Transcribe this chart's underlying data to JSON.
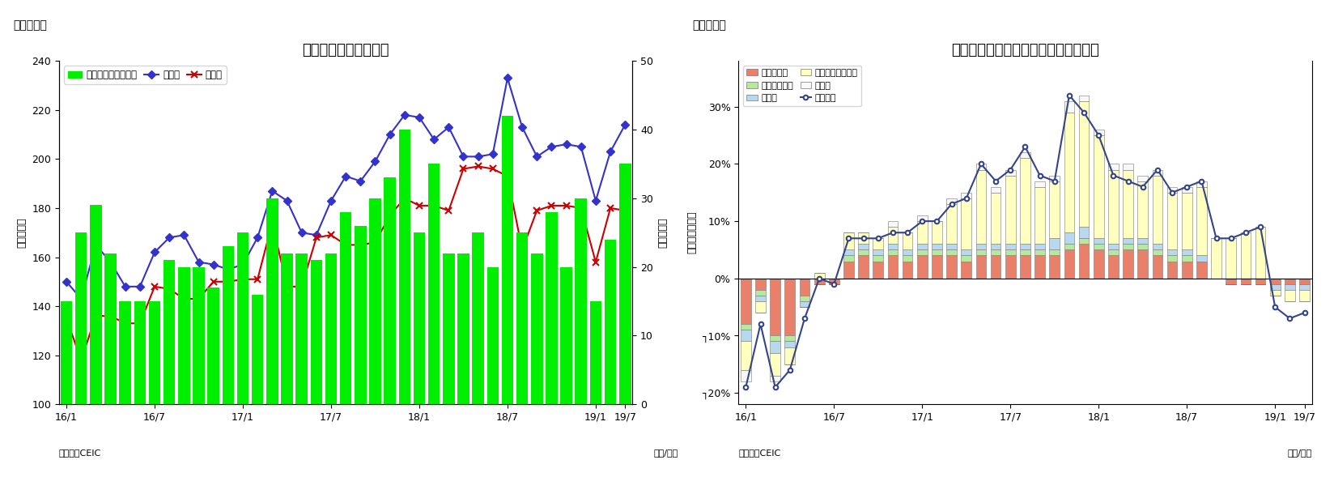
{
  "chart1": {
    "title": "マレーシア　貿易収支",
    "subtitle": "（図表７）",
    "ylabel_left": "（億ドル）",
    "ylabel_right": "（億ドル）",
    "xlabel": "（年/月）",
    "source": "（資料）CEIC",
    "ylim_left": [
      100,
      240
    ],
    "ylim_right": [
      0,
      50
    ],
    "yticks_left": [
      100,
      120,
      140,
      160,
      180,
      200,
      220,
      240
    ],
    "yticks_right": [
      0,
      10,
      20,
      30,
      40,
      50
    ],
    "xtick_labels": [
      "16/1",
      "16/7",
      "17/1",
      "17/7",
      "18/1",
      "18/7",
      "19/1",
      "19/7"
    ],
    "export_vals": [
      150,
      143,
      165,
      158,
      148,
      148,
      162,
      168,
      169,
      158,
      157,
      155,
      157,
      168,
      187,
      183,
      170,
      169,
      183,
      193,
      191,
      199,
      210,
      218,
      217,
      208,
      213,
      201,
      201,
      202,
      233,
      213,
      201,
      205,
      206,
      205,
      183,
      203,
      214
    ],
    "import_vals": [
      135,
      118,
      136,
      136,
      133,
      133,
      148,
      147,
      143,
      143,
      150,
      150,
      151,
      151,
      174,
      148,
      148,
      168,
      169,
      165,
      165,
      166,
      177,
      184,
      181,
      181,
      179,
      196,
      197,
      196,
      193,
      163,
      179,
      181,
      181,
      180,
      158,
      180,
      179
    ],
    "trade_balance": [
      15,
      25,
      29,
      22,
      15,
      15,
      15,
      21,
      20,
      20,
      17,
      23,
      25,
      16,
      30,
      22,
      22,
      21,
      22,
      28,
      26,
      30,
      33,
      40,
      25,
      35,
      22,
      22,
      25,
      20,
      42,
      25,
      22,
      28,
      20,
      30,
      15,
      24,
      35
    ],
    "bar_color": "#00EE00",
    "export_color": "#3333CC",
    "import_color": "#CC0000",
    "legend_trade": "貿易収支（右目盛）",
    "legend_export": "輸出額",
    "legend_import": "輸入額"
  },
  "chart2": {
    "title": "マレーシア　輸出の伸び率（品目別）",
    "subtitle": "（図表８）",
    "ylabel_left": "（前年同月比）",
    "xlabel": "（年/月）",
    "source": "（資料）CEIC",
    "ylim": [
      -0.22,
      0.38
    ],
    "ytick_vals": [
      -0.2,
      -0.1,
      0.0,
      0.1,
      0.2,
      0.3
    ],
    "ytick_labels": [
      "┐20%",
      "┐10%",
      "0%",
      "10%",
      "20%",
      "30%"
    ],
    "xtick_labels": [
      "16/1",
      "16/7",
      "17/1",
      "17/7",
      "18/1",
      "18/7",
      "19/1",
      "19/7"
    ],
    "mineral_fuel": [
      -0.08,
      -0.02,
      -0.1,
      -0.1,
      -0.03,
      -0.01,
      -0.01,
      0.03,
      0.04,
      0.03,
      0.04,
      0.03,
      0.04,
      0.04,
      0.04,
      0.03,
      0.04,
      0.04,
      0.04,
      0.04,
      0.04,
      0.04,
      0.05,
      0.06,
      0.05,
      0.04,
      0.05,
      0.05,
      0.04,
      0.03,
      0.03,
      0.03,
      0.0,
      -0.01,
      -0.01,
      -0.01,
      -0.01,
      -0.01,
      -0.01
    ],
    "animal_veg_oil": [
      -0.01,
      -0.01,
      -0.01,
      -0.01,
      -0.01,
      0.0,
      0.0,
      0.01,
      0.01,
      0.01,
      0.01,
      0.01,
      0.01,
      0.01,
      0.01,
      0.01,
      0.01,
      0.01,
      0.01,
      0.01,
      0.01,
      0.01,
      0.01,
      0.01,
      0.01,
      0.01,
      0.01,
      0.01,
      0.01,
      0.01,
      0.01,
      0.0,
      0.0,
      0.0,
      0.0,
      0.0,
      0.0,
      0.0,
      0.0
    ],
    "manufactures": [
      -0.02,
      -0.01,
      -0.02,
      -0.01,
      -0.01,
      0.0,
      0.0,
      0.01,
      0.01,
      0.01,
      0.01,
      0.01,
      0.01,
      0.01,
      0.01,
      0.01,
      0.01,
      0.01,
      0.01,
      0.01,
      0.01,
      0.02,
      0.02,
      0.02,
      0.01,
      0.01,
      0.01,
      0.01,
      0.01,
      0.01,
      0.01,
      0.01,
      0.0,
      0.0,
      0.0,
      0.0,
      -0.01,
      -0.01,
      -0.01
    ],
    "machinery": [
      -0.05,
      -0.02,
      -0.04,
      -0.03,
      0.0,
      0.01,
      0.0,
      0.03,
      0.02,
      0.02,
      0.03,
      0.03,
      0.04,
      0.04,
      0.07,
      0.09,
      0.13,
      0.09,
      0.12,
      0.15,
      0.1,
      0.1,
      0.21,
      0.22,
      0.18,
      0.13,
      0.12,
      0.1,
      0.12,
      0.1,
      0.1,
      0.12,
      0.07,
      0.07,
      0.08,
      0.09,
      -0.01,
      -0.02,
      -0.02
    ],
    "other": [
      -0.02,
      0.0,
      -0.01,
      0.0,
      0.0,
      0.0,
      0.0,
      0.0,
      0.0,
      0.0,
      0.01,
      0.0,
      0.01,
      0.0,
      0.01,
      0.01,
      0.01,
      0.01,
      0.01,
      0.01,
      0.01,
      0.01,
      0.02,
      0.01,
      0.01,
      0.01,
      0.01,
      0.01,
      0.01,
      0.01,
      0.01,
      0.01,
      0.0,
      0.0,
      0.0,
      0.0,
      0.0,
      0.0,
      0.0
    ],
    "total_export": [
      -0.19,
      -0.08,
      -0.19,
      -0.16,
      -0.07,
      0.0,
      -0.01,
      0.07,
      0.07,
      0.07,
      0.08,
      0.08,
      0.1,
      0.1,
      0.13,
      0.14,
      0.2,
      0.17,
      0.19,
      0.23,
      0.18,
      0.17,
      0.32,
      0.29,
      0.25,
      0.18,
      0.17,
      0.16,
      0.19,
      0.15,
      0.16,
      0.17,
      0.07,
      0.07,
      0.08,
      0.09,
      -0.05,
      -0.07,
      -0.06
    ],
    "mineral_color": "#E8806A",
    "animal_color": "#B8E8A0",
    "manufactures_color": "#B8D8F0",
    "machinery_color": "#FFFFC0",
    "other_color": "#F8F8F8",
    "total_color": "#334488",
    "legend_mineral": "鉱物性燃料",
    "legend_animal": "動植物性油脂",
    "legend_manufactures": "製造品",
    "legend_machinery": "機械・輸送用機器",
    "legend_other": "その他",
    "legend_total": "輸出合計"
  }
}
